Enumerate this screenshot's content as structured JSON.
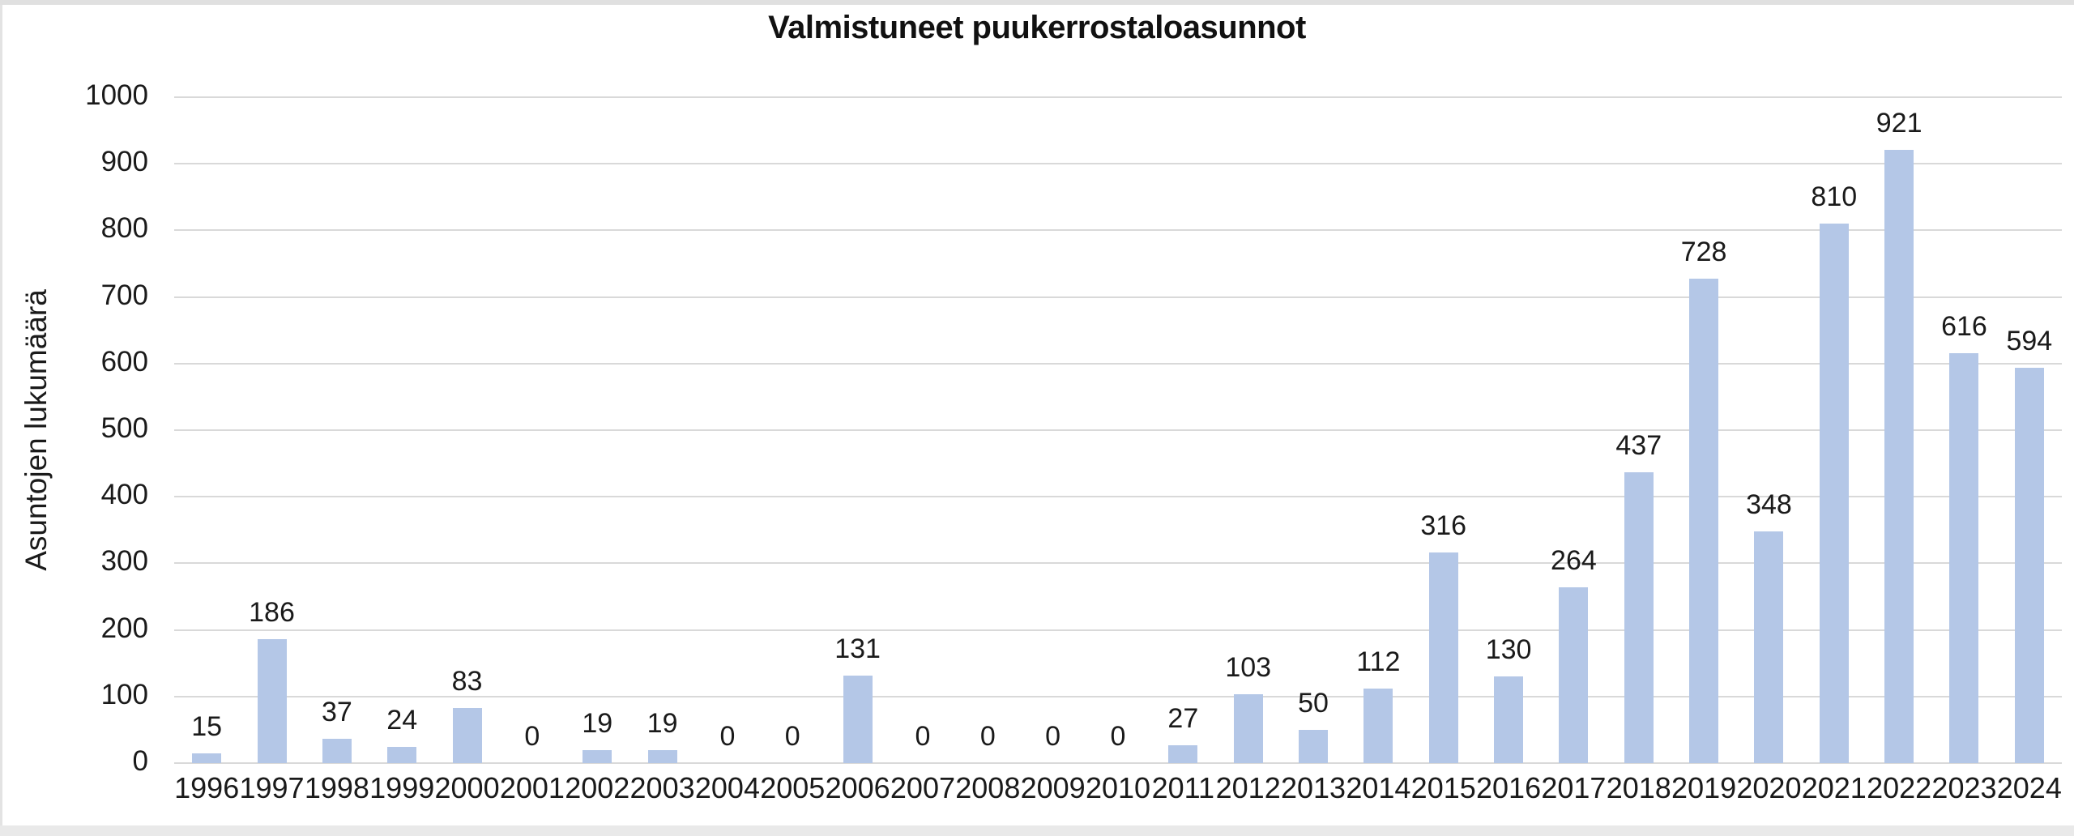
{
  "chart_data": {
    "type": "bar",
    "title": "Valmistuneet puukerrostaloasunnot",
    "xlabel": "",
    "ylabel": "Asuntojen lukumäärä",
    "categories": [
      "1996",
      "1997",
      "1998",
      "1999",
      "2000",
      "2001",
      "2002",
      "2003",
      "2004",
      "2005",
      "2006",
      "2007",
      "2008",
      "2009",
      "2010",
      "2011",
      "2012",
      "2013",
      "2014",
      "2015",
      "2016",
      "2017",
      "2018",
      "2019",
      "2020",
      "2021",
      "2022",
      "2023",
      "2024"
    ],
    "values": [
      15,
      186,
      37,
      24,
      83,
      0,
      19,
      19,
      0,
      0,
      131,
      0,
      0,
      0,
      0,
      27,
      103,
      50,
      112,
      316,
      130,
      264,
      437,
      728,
      348,
      810,
      921,
      616,
      594
    ],
    "ylim": [
      0,
      1000
    ],
    "ytick_step": 100,
    "ytick_labels": [
      "0",
      "100",
      "200",
      "300",
      "400",
      "500",
      "600",
      "700",
      "800",
      "900",
      "1000"
    ],
    "grid": true,
    "legend": false,
    "data_labels": true,
    "colors": {
      "bar_fill": "#b4c7e7",
      "gridline": "#d9d9d9",
      "axis_line": "#d9d9d9",
      "text": "#1a1a1a",
      "background": "#ffffff"
    }
  }
}
